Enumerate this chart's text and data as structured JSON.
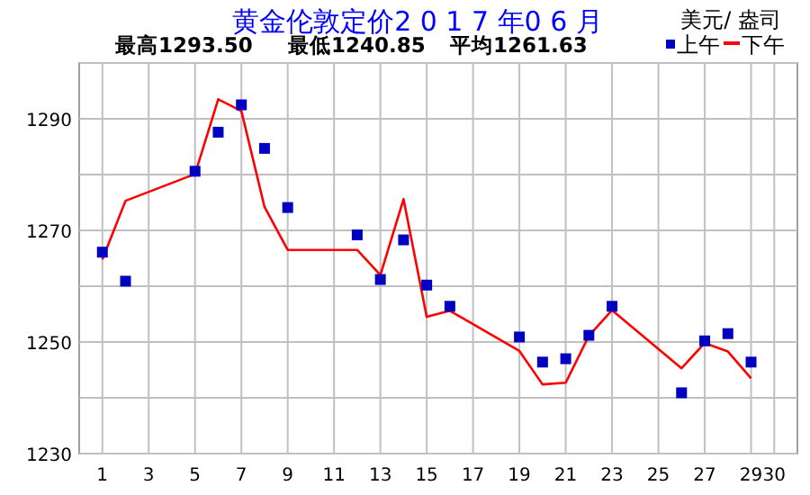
{
  "chart_data": {
    "type": "line",
    "title": "黄金伦敦定价2 0 1 7 年0 6 月",
    "annotations": [
      "美元/ 盎司",
      "最高1293.50",
      "最低1240.85",
      "平均1261.63"
    ],
    "xlim": [
      0,
      31
    ],
    "xticks": [
      1,
      3,
      5,
      7,
      9,
      11,
      13,
      15,
      17,
      19,
      21,
      23,
      25,
      27,
      29,
      30
    ],
    "ylim": [
      1230,
      1300
    ],
    "yticks": [
      1230,
      {
        "value": 1240,
        "label": null
      },
      1250,
      {
        "value": 1260,
        "label": null
      },
      1270,
      {
        "value": 1280,
        "label": null
      },
      1290,
      {
        "value": 1300,
        "label": null
      }
    ],
    "grid": true,
    "legend": "top right",
    "series": [
      {
        "name": "上午",
        "type": "scatter",
        "marker": "square",
        "color": "#0000c0",
        "x": [
          1,
          2,
          5,
          6,
          7,
          8,
          9,
          12,
          13,
          14,
          15,
          16,
          19,
          20,
          21,
          22,
          23,
          26,
          27,
          28,
          29
        ],
        "values": [
          1266.1,
          1260.9,
          1280.6,
          1287.6,
          1292.5,
          1284.7,
          1274.1,
          1269.2,
          1261.2,
          1268.3,
          1260.2,
          1256.4,
          1250.9,
          1246.4,
          1247.0,
          1251.2,
          1256.4,
          1240.9,
          1250.2,
          1251.5,
          1246.4
        ]
      },
      {
        "name": "下午",
        "color": "#ff0000",
        "x": [
          1,
          2,
          5,
          6,
          7,
          8,
          9,
          12,
          13,
          14,
          15,
          16,
          19,
          20,
          21,
          22,
          23,
          26,
          27,
          28,
          29
        ],
        "values": [
          1264.8,
          1275.3,
          1280.1,
          1293.5,
          1291.4,
          1274.2,
          1266.5,
          1266.5,
          1262.0,
          1275.6,
          1254.5,
          1255.6,
          1248.4,
          1242.4,
          1242.7,
          1251.1,
          1255.7,
          1245.3,
          1249.8,
          1248.3,
          1243.5
        ]
      }
    ]
  }
}
